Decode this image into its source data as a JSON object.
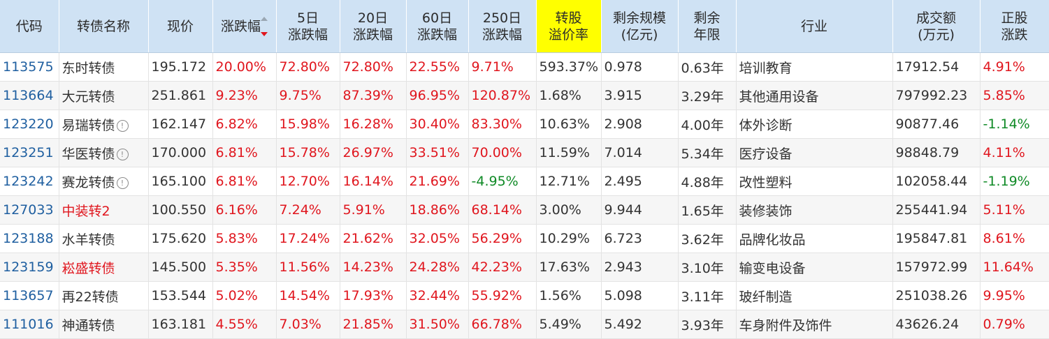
{
  "headers": [
    {
      "l1": "代码",
      "l2": ""
    },
    {
      "l1": "转债名称",
      "l2": ""
    },
    {
      "l1": "现价",
      "l2": ""
    },
    {
      "l1": "涨跌幅",
      "l2": ""
    },
    {
      "l1": "5日",
      "l2": "涨跌幅"
    },
    {
      "l1": "20日",
      "l2": "涨跌幅"
    },
    {
      "l1": "60日",
      "l2": "涨跌幅"
    },
    {
      "l1": "250日",
      "l2": "涨跌幅"
    },
    {
      "l1": "转股",
      "l2": "溢价率"
    },
    {
      "l1": "剩余规模",
      "l2": "(亿元)"
    },
    {
      "l1": "剩余",
      "l2": "年限"
    },
    {
      "l1": "行业",
      "l2": ""
    },
    {
      "l1": "成交额",
      "l2": "(万元)"
    },
    {
      "l1": "正股",
      "l2": "涨跌"
    }
  ],
  "colors": {
    "up": "#e0161e",
    "down": "#0f8a26",
    "code": "#1f5fa0",
    "header_bg": "#cfe2f4",
    "highlight": "#ffff00"
  },
  "rows": [
    {
      "code": "113575",
      "name": "东时转债",
      "name_red": false,
      "info": false,
      "price": "195.172",
      "chg": "20.00%",
      "chg5": "72.80%",
      "chg20": "72.80%",
      "chg60": "22.55%",
      "chg250": "9.71%",
      "premium": "593.37%",
      "scale": "0.978",
      "years": "0.63年",
      "industry": "培训教育",
      "turnover": "17912.54",
      "stock_chg": "4.91%"
    },
    {
      "code": "113664",
      "name": "大元转债",
      "name_red": false,
      "info": false,
      "price": "251.861",
      "chg": "9.23%",
      "chg5": "9.75%",
      "chg20": "87.39%",
      "chg60": "96.95%",
      "chg250": "120.87%",
      "premium": "1.68%",
      "scale": "3.915",
      "years": "3.29年",
      "industry": "其他通用设备",
      "turnover": "797992.23",
      "stock_chg": "5.85%"
    },
    {
      "code": "123220",
      "name": "易瑞转债",
      "name_red": false,
      "info": true,
      "price": "162.147",
      "chg": "6.82%",
      "chg5": "15.98%",
      "chg20": "16.28%",
      "chg60": "30.40%",
      "chg250": "83.30%",
      "premium": "10.63%",
      "scale": "2.908",
      "years": "4.00年",
      "industry": "体外诊断",
      "turnover": "90877.46",
      "stock_chg": "-1.14%"
    },
    {
      "code": "123251",
      "name": "华医转债",
      "name_red": false,
      "info": true,
      "price": "170.000",
      "chg": "6.81%",
      "chg5": "15.78%",
      "chg20": "26.97%",
      "chg60": "33.51%",
      "chg250": "70.00%",
      "premium": "11.59%",
      "scale": "7.014",
      "years": "5.34年",
      "industry": "医疗设备",
      "turnover": "98848.79",
      "stock_chg": "4.11%"
    },
    {
      "code": "123242",
      "name": "赛龙转债",
      "name_red": false,
      "info": true,
      "price": "165.100",
      "chg": "6.81%",
      "chg5": "12.70%",
      "chg20": "16.14%",
      "chg60": "21.69%",
      "chg250": "-4.95%",
      "premium": "12.71%",
      "scale": "2.495",
      "years": "4.88年",
      "industry": "改性塑料",
      "turnover": "102058.44",
      "stock_chg": "-1.19%"
    },
    {
      "code": "127033",
      "name": "中装转2",
      "name_red": true,
      "info": false,
      "price": "100.550",
      "chg": "6.16%",
      "chg5": "7.24%",
      "chg20": "5.91%",
      "chg60": "18.86%",
      "chg250": "68.14%",
      "premium": "3.00%",
      "scale": "9.944",
      "years": "1.65年",
      "industry": "装修装饰",
      "turnover": "255441.94",
      "stock_chg": "5.11%"
    },
    {
      "code": "123188",
      "name": "水羊转债",
      "name_red": false,
      "info": false,
      "price": "175.620",
      "chg": "5.83%",
      "chg5": "17.24%",
      "chg20": "21.62%",
      "chg60": "32.05%",
      "chg250": "56.29%",
      "premium": "10.29%",
      "scale": "6.723",
      "years": "3.62年",
      "industry": "品牌化妆品",
      "turnover": "195847.81",
      "stock_chg": "8.61%"
    },
    {
      "code": "123159",
      "name": "崧盛转债",
      "name_red": true,
      "info": false,
      "price": "145.500",
      "chg": "5.35%",
      "chg5": "11.56%",
      "chg20": "14.23%",
      "chg60": "24.28%",
      "chg250": "42.23%",
      "premium": "17.63%",
      "scale": "2.943",
      "years": "3.10年",
      "industry": "输变电设备",
      "turnover": "157972.99",
      "stock_chg": "11.64%"
    },
    {
      "code": "113657",
      "name": "再22转债",
      "name_red": false,
      "info": false,
      "price": "153.544",
      "chg": "5.02%",
      "chg5": "14.54%",
      "chg20": "17.93%",
      "chg60": "32.44%",
      "chg250": "55.92%",
      "premium": "1.56%",
      "scale": "5.098",
      "years": "3.11年",
      "industry": "玻纤制造",
      "turnover": "251038.26",
      "stock_chg": "9.95%"
    },
    {
      "code": "111016",
      "name": "神通转债",
      "name_red": false,
      "info": false,
      "price": "163.181",
      "chg": "4.55%",
      "chg5": "7.03%",
      "chg20": "21.85%",
      "chg60": "31.50%",
      "chg250": "66.78%",
      "premium": "5.49%",
      "scale": "5.492",
      "years": "3.93年",
      "industry": "车身附件及饰件",
      "turnover": "43626.24",
      "stock_chg": "0.79%"
    }
  ]
}
